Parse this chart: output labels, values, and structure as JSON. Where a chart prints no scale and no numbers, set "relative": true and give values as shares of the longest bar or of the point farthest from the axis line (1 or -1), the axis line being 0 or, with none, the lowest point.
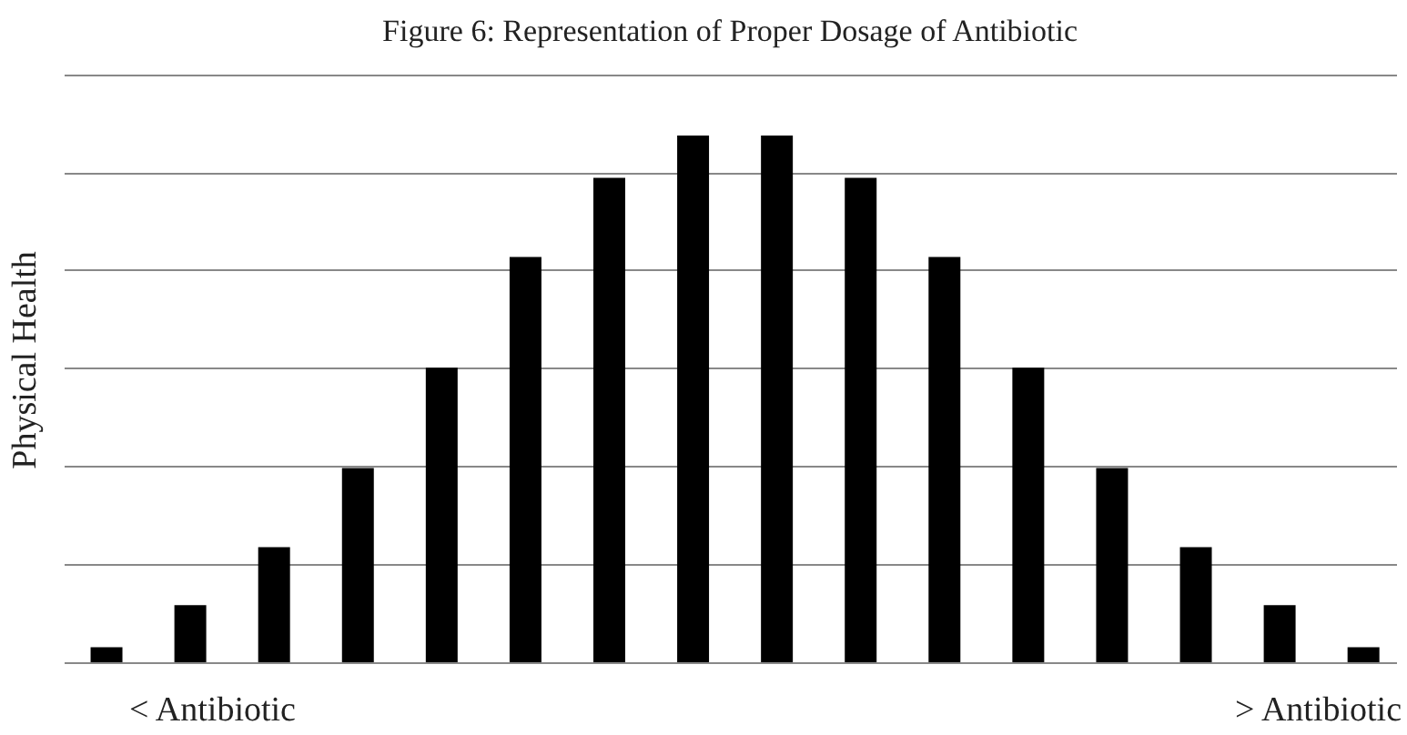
{
  "chart_data": {
    "type": "bar",
    "title": "Figure 6: Representation of Proper Dosage of Antibiotic",
    "ylabel": "Physical Health",
    "categories": [
      null,
      null,
      null,
      null,
      null,
      null,
      null,
      null,
      null,
      null,
      null,
      null,
      null,
      null,
      null,
      null
    ],
    "values": [
      0.03,
      0.11,
      0.22,
      0.37,
      0.56,
      0.77,
      0.92,
      1,
      1,
      0.92,
      0.77,
      0.56,
      0.37,
      0.22,
      0.11,
      0.03
    ],
    "color": "#000000",
    "relative": true,
    "grid": "y",
    "annotations": [
      "< Antibiotic",
      "> Antibiotic"
    ]
  }
}
